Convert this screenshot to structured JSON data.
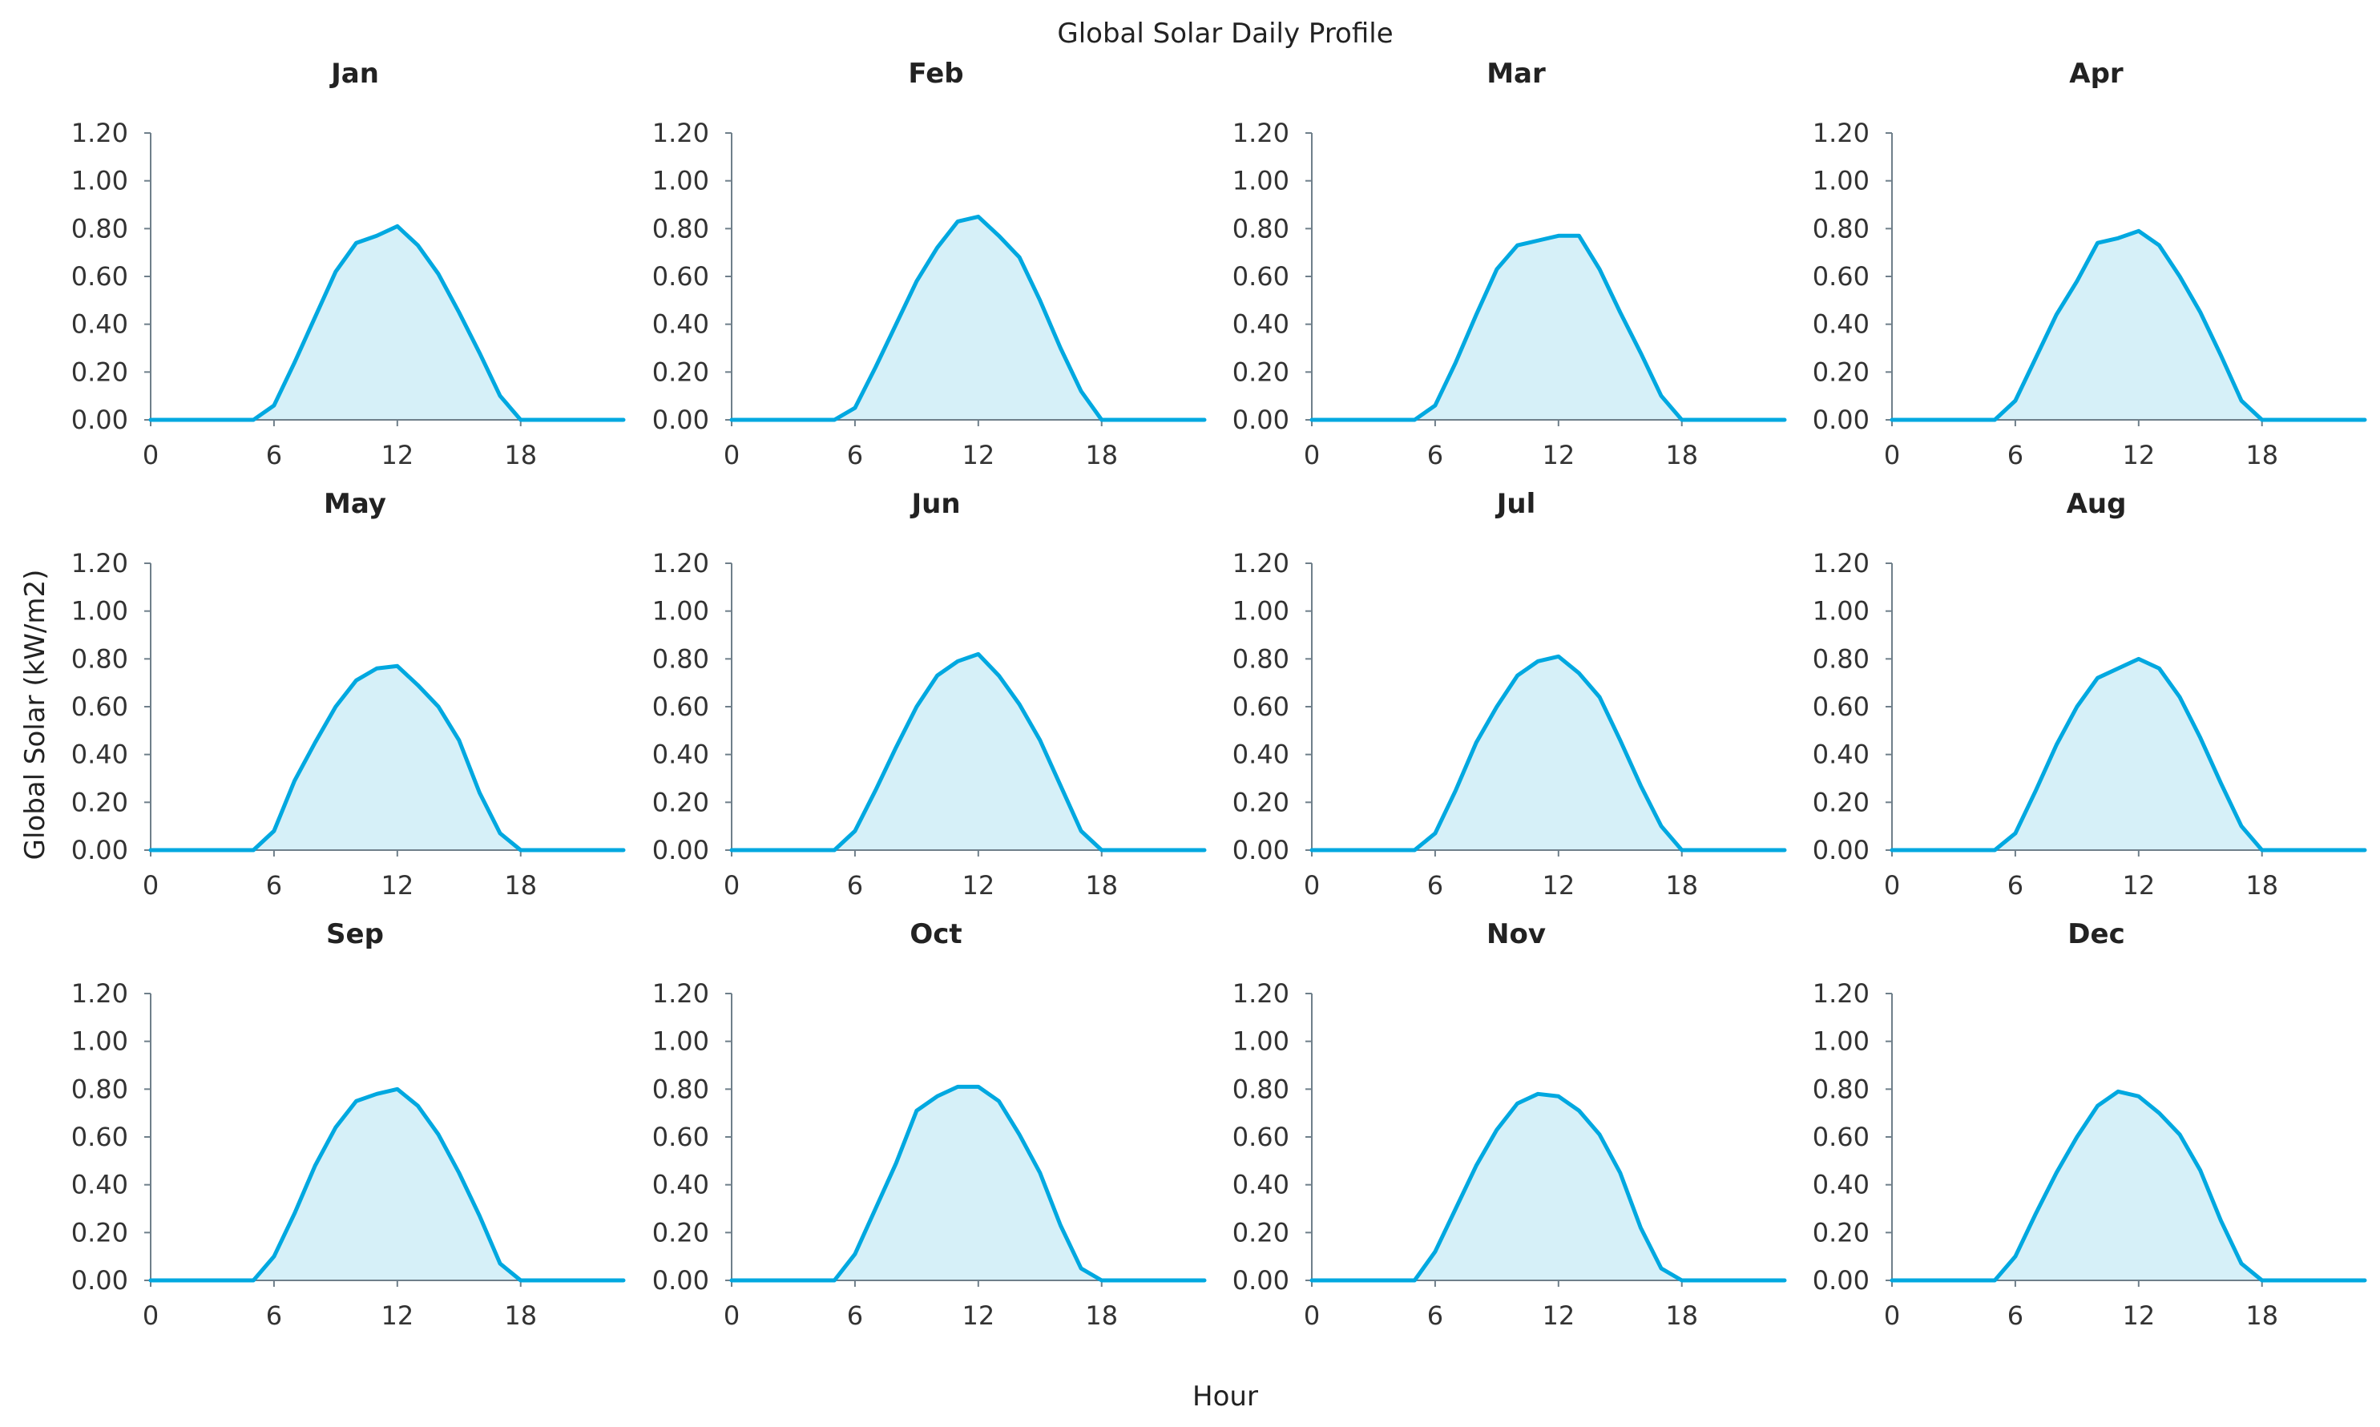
{
  "chart_data": {
    "type": "area",
    "title": "Global Solar Daily Profile",
    "xlabel": "Hour",
    "ylabel": "Global Solar (kW/m2)",
    "xlim": [
      0,
      23
    ],
    "ylim": [
      0,
      1.2
    ],
    "x_ticks": [
      "0",
      "6",
      "12",
      "18"
    ],
    "y_ticks": [
      "0.00",
      "0.20",
      "0.40",
      "0.60",
      "0.80",
      "1.00",
      "1.20"
    ],
    "x": [
      0,
      1,
      2,
      3,
      4,
      5,
      6,
      7,
      8,
      9,
      10,
      11,
      12,
      13,
      14,
      15,
      16,
      17,
      18,
      19,
      20,
      21,
      22,
      23
    ],
    "colors": {
      "line": "#00a8e0",
      "fill": "#d6f0f8",
      "axis": "#6f7f8a"
    },
    "panels": [
      {
        "name": "Jan",
        "values": [
          0,
          0,
          0,
          0,
          0,
          0,
          0.06,
          0.24,
          0.43,
          0.62,
          0.74,
          0.77,
          0.81,
          0.73,
          0.61,
          0.45,
          0.28,
          0.1,
          0,
          0,
          0,
          0,
          0,
          0
        ]
      },
      {
        "name": "Feb",
        "values": [
          0,
          0,
          0,
          0,
          0,
          0,
          0.05,
          0.22,
          0.4,
          0.58,
          0.72,
          0.83,
          0.85,
          0.77,
          0.68,
          0.5,
          0.3,
          0.12,
          0,
          0,
          0,
          0,
          0,
          0
        ]
      },
      {
        "name": "Mar",
        "values": [
          0,
          0,
          0,
          0,
          0,
          0,
          0.06,
          0.24,
          0.44,
          0.63,
          0.73,
          0.75,
          0.77,
          0.77,
          0.63,
          0.45,
          0.28,
          0.1,
          0,
          0,
          0,
          0,
          0,
          0
        ]
      },
      {
        "name": "Apr",
        "values": [
          0,
          0,
          0,
          0,
          0,
          0,
          0.08,
          0.26,
          0.44,
          0.58,
          0.74,
          0.76,
          0.79,
          0.73,
          0.6,
          0.45,
          0.27,
          0.08,
          0,
          0,
          0,
          0,
          0,
          0
        ]
      },
      {
        "name": "May",
        "values": [
          0,
          0,
          0,
          0,
          0,
          0,
          0.08,
          0.29,
          0.45,
          0.6,
          0.71,
          0.76,
          0.77,
          0.69,
          0.6,
          0.46,
          0.24,
          0.07,
          0,
          0,
          0,
          0,
          0,
          0
        ]
      },
      {
        "name": "Jun",
        "values": [
          0,
          0,
          0,
          0,
          0,
          0,
          0.08,
          0.25,
          0.43,
          0.6,
          0.73,
          0.79,
          0.82,
          0.73,
          0.61,
          0.46,
          0.27,
          0.08,
          0,
          0,
          0,
          0,
          0,
          0
        ]
      },
      {
        "name": "Jul",
        "values": [
          0,
          0,
          0,
          0,
          0,
          0,
          0.07,
          0.25,
          0.45,
          0.6,
          0.73,
          0.79,
          0.81,
          0.74,
          0.64,
          0.46,
          0.27,
          0.1,
          0,
          0,
          0,
          0,
          0,
          0
        ]
      },
      {
        "name": "Aug",
        "values": [
          0,
          0,
          0,
          0,
          0,
          0,
          0.07,
          0.25,
          0.44,
          0.6,
          0.72,
          0.76,
          0.8,
          0.76,
          0.64,
          0.47,
          0.28,
          0.1,
          0,
          0,
          0,
          0,
          0,
          0
        ]
      },
      {
        "name": "Sep",
        "values": [
          0,
          0,
          0,
          0,
          0,
          0,
          0.1,
          0.28,
          0.48,
          0.64,
          0.75,
          0.78,
          0.8,
          0.73,
          0.61,
          0.45,
          0.27,
          0.07,
          0,
          0,
          0,
          0,
          0,
          0
        ]
      },
      {
        "name": "Oct",
        "values": [
          0,
          0,
          0,
          0,
          0,
          0,
          0.11,
          0.3,
          0.49,
          0.71,
          0.77,
          0.81,
          0.81,
          0.75,
          0.61,
          0.45,
          0.23,
          0.05,
          0,
          0,
          0,
          0,
          0,
          0
        ]
      },
      {
        "name": "Nov",
        "values": [
          0,
          0,
          0,
          0,
          0,
          0,
          0.12,
          0.3,
          0.48,
          0.63,
          0.74,
          0.78,
          0.77,
          0.71,
          0.61,
          0.45,
          0.22,
          0.05,
          0,
          0,
          0,
          0,
          0,
          0
        ]
      },
      {
        "name": "Dec",
        "values": [
          0,
          0,
          0,
          0,
          0,
          0,
          0.1,
          0.28,
          0.45,
          0.6,
          0.73,
          0.79,
          0.77,
          0.7,
          0.61,
          0.46,
          0.25,
          0.07,
          0,
          0,
          0,
          0,
          0,
          0
        ]
      }
    ]
  }
}
